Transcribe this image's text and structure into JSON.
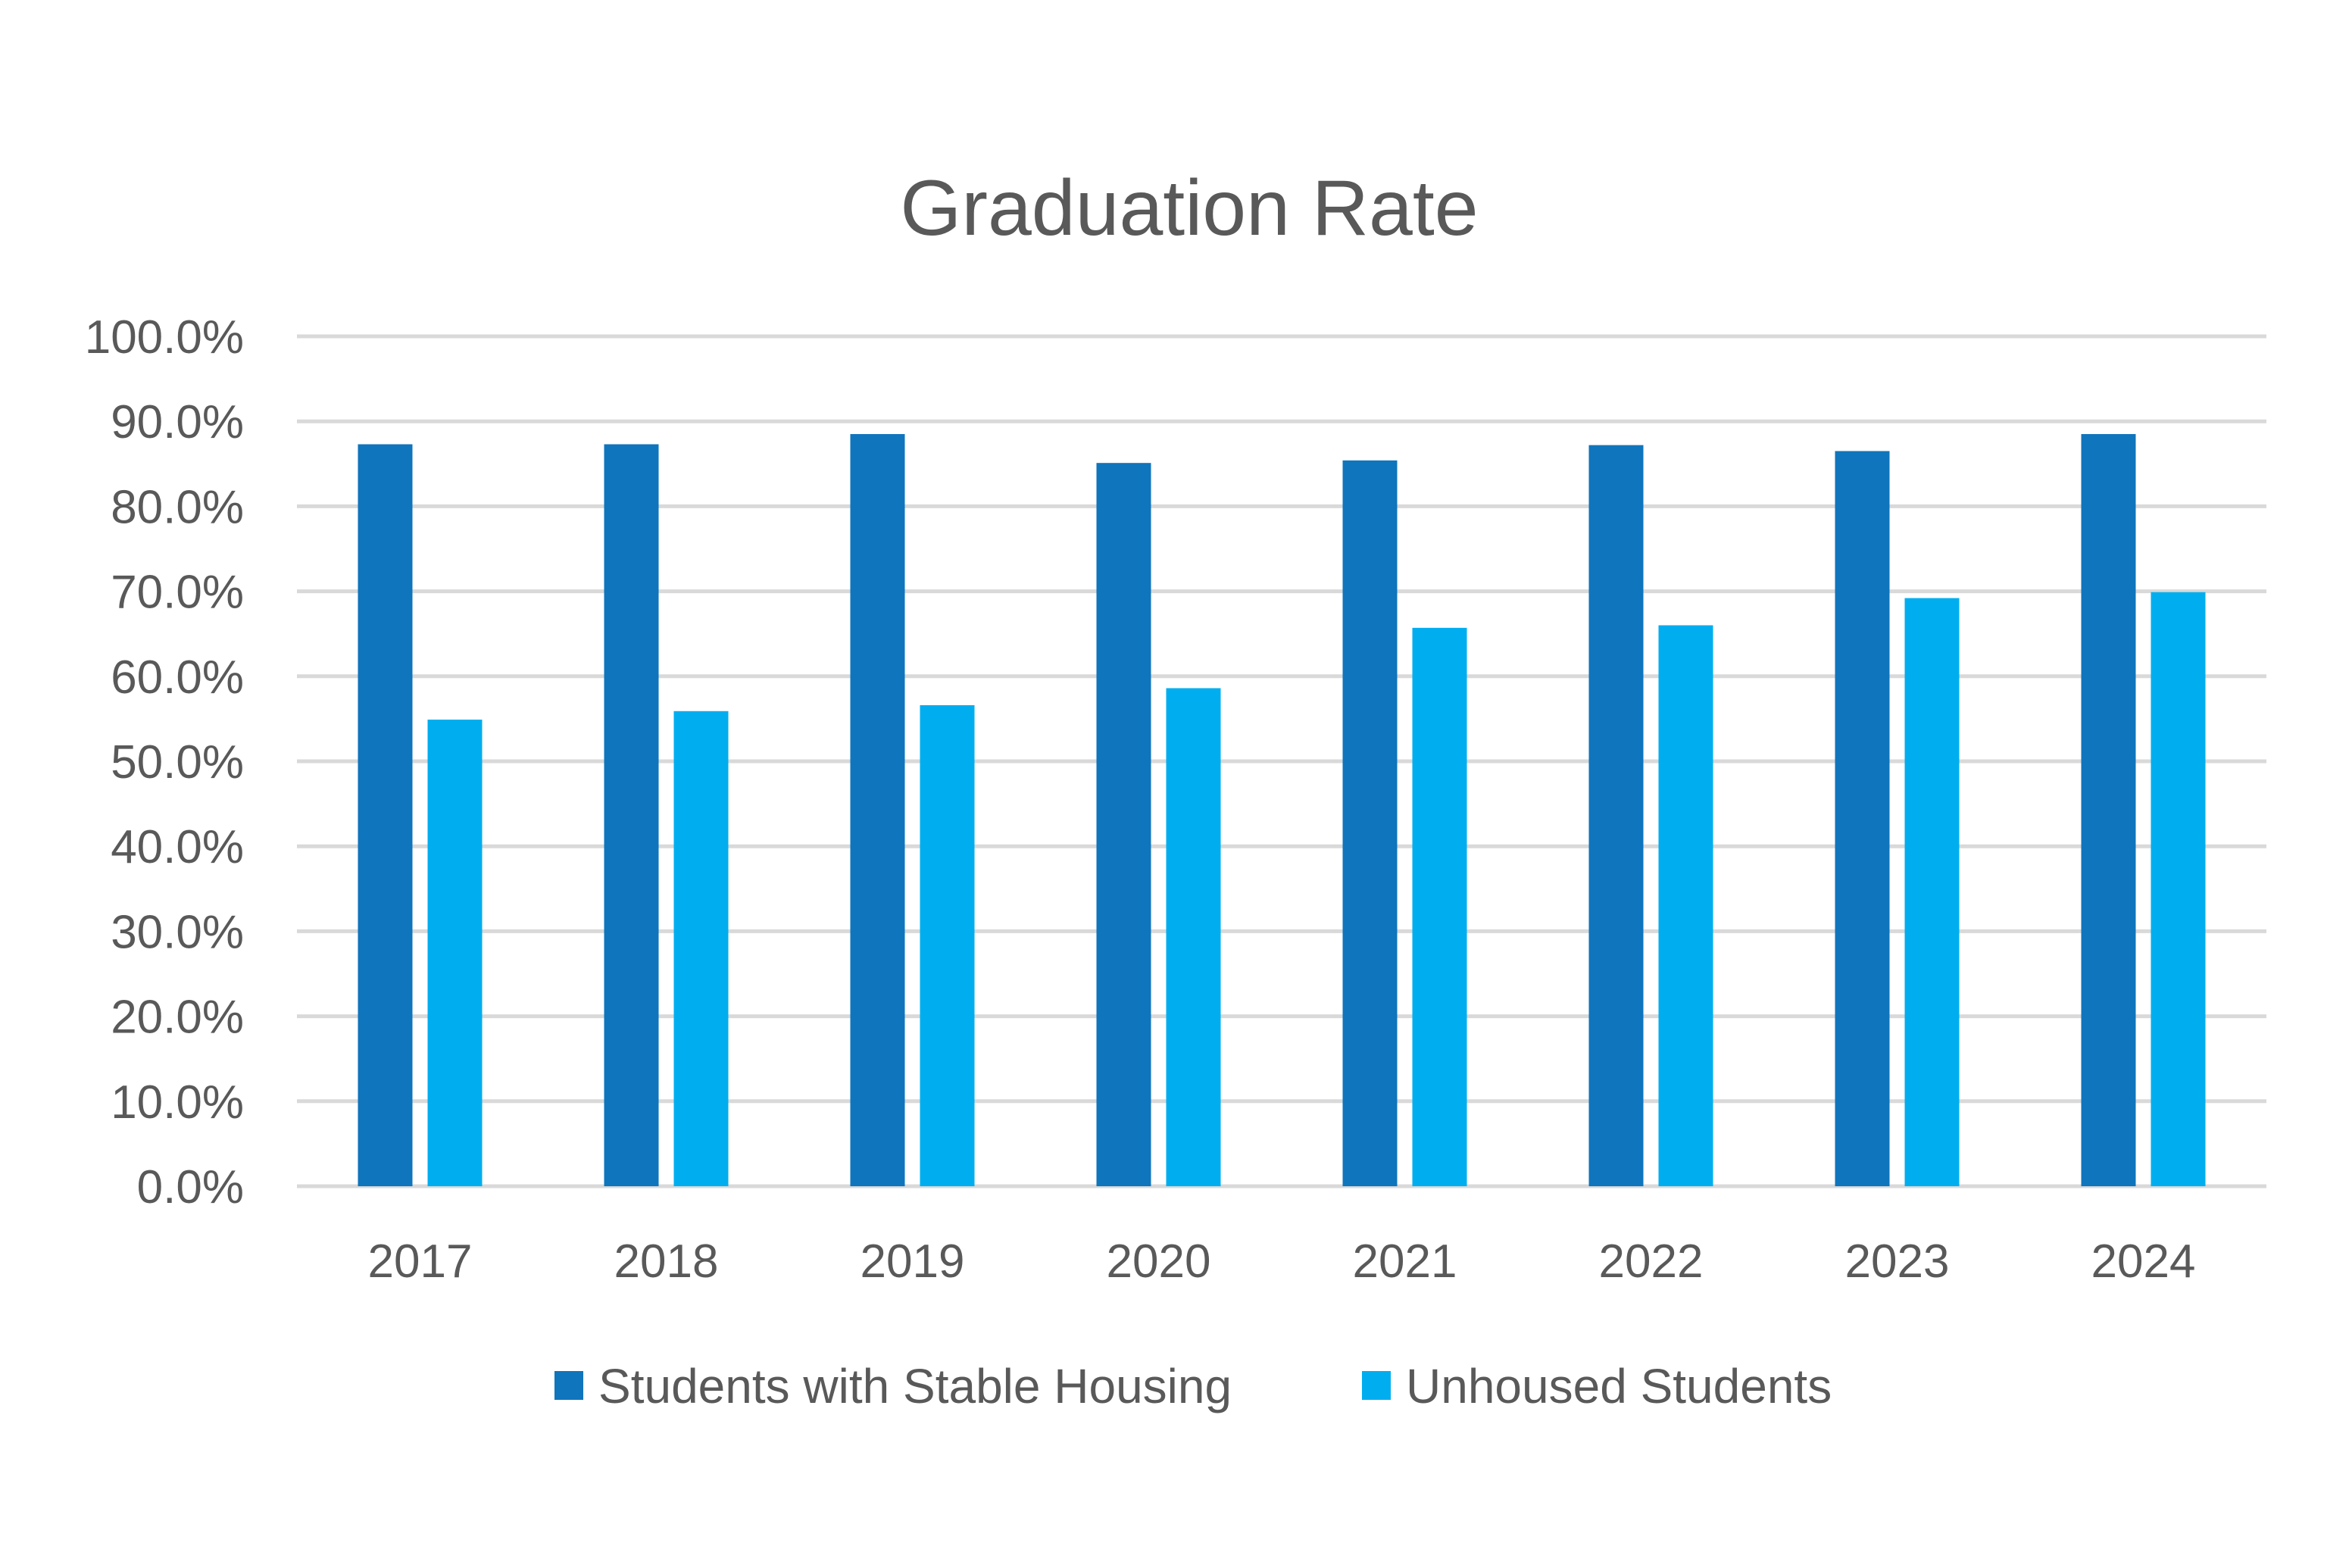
{
  "chart_data": {
    "type": "bar",
    "title": "Graduation Rate",
    "xlabel": "",
    "ylabel": "",
    "categories": [
      "2017",
      "2018",
      "2019",
      "2020",
      "2021",
      "2022",
      "2023",
      "2024"
    ],
    "series": [
      {
        "name": "Students with Stable Housing",
        "color": "#0F75BC",
        "values": [
          87.3,
          87.3,
          88.5,
          85.1,
          85.4,
          87.2,
          86.5,
          88.5
        ]
      },
      {
        "name": "Unhoused Students",
        "color": "#00AEEF",
        "values": [
          54.9,
          55.9,
          56.6,
          58.6,
          65.7,
          66.0,
          69.2,
          69.9
        ]
      }
    ],
    "ylim": [
      0,
      100
    ],
    "yticks": [
      "0.0%",
      "10.0%",
      "20.0%",
      "30.0%",
      "40.0%",
      "50.0%",
      "60.0%",
      "70.0%",
      "80.0%",
      "90.0%",
      "100.0%"
    ],
    "grid": true,
    "gridline_color": "#D9D9D9",
    "legend_position": "bottom"
  }
}
